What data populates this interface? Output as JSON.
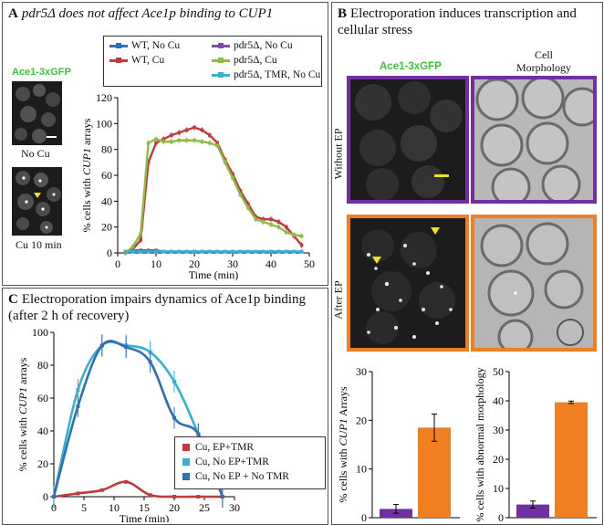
{
  "panelA": {
    "letter": "A",
    "title": "pdr5Δ does not affect Ace1p binding to CUP1",
    "micro_label": "Ace1-3xGFP",
    "caption_top": "No Cu",
    "caption_bottom": "Cu 10 min"
  },
  "panelB": {
    "letter": "B",
    "title": "Electroporation induces transcription and cellular stress",
    "col1": "Ace1-3xGFP",
    "col2": "Cell Morphology",
    "row1": "Without EP",
    "row2": "After EP"
  },
  "panelC": {
    "letter": "C",
    "title": "Electroporation impairs dynamics of Ace1p binding (after 2 h  of recovery)"
  },
  "colors": {
    "wt_no_cu": "#2f6fb5",
    "wt_cu": "#c0393d",
    "pdr5_no_cu": "#7d4fa3",
    "pdr5_cu": "#8fbc45",
    "pdr5_tmr": "#35b2d1",
    "purple": "#7030a0",
    "orange": "#f07f22"
  },
  "chart_data": [
    {
      "type": "line",
      "id": "A",
      "xlabel": "Time (min)",
      "ylabel": "% cells with CUP1 arrays",
      "xlim": [
        0,
        50
      ],
      "ylim": [
        0,
        120
      ],
      "xticks": [
        0,
        10,
        20,
        30,
        40,
        50
      ],
      "yticks": [
        0,
        20,
        40,
        60,
        80,
        100,
        120
      ],
      "series": [
        {
          "name": "WT, No Cu",
          "x": [
            2,
            4,
            6,
            8,
            10,
            12,
            14,
            16,
            18,
            20,
            22,
            24,
            26,
            28,
            30,
            32,
            34,
            36,
            38,
            40,
            42,
            44,
            46,
            48
          ],
          "values": [
            1,
            1,
            1,
            1,
            1,
            1,
            1,
            1,
            1,
            1,
            1,
            1,
            1,
            1,
            1,
            1,
            1,
            1,
            1,
            1,
            1,
            1,
            1,
            1
          ]
        },
        {
          "name": "WT, Cu",
          "x": [
            2,
            4,
            6,
            8,
            10,
            12,
            14,
            16,
            18,
            20,
            22,
            24,
            26,
            28,
            30,
            32,
            34,
            36,
            38,
            40,
            42,
            44,
            46,
            48
          ],
          "values": [
            0,
            3,
            10,
            70,
            85,
            88,
            91,
            93,
            95,
            97,
            95,
            91,
            85,
            72,
            61,
            48,
            38,
            28,
            26,
            26,
            24,
            20,
            13,
            6
          ]
        },
        {
          "name": "pdr5Δ, No Cu",
          "x": [
            2,
            4,
            6,
            8,
            10,
            12,
            14,
            16,
            18,
            20,
            22,
            24,
            26,
            28,
            30,
            32,
            34,
            36,
            38,
            40,
            42,
            44,
            46,
            48
          ],
          "values": [
            1,
            2,
            2,
            2,
            2,
            1,
            1,
            1,
            1,
            1,
            1,
            1,
            1,
            1,
            1,
            1,
            1,
            1,
            1,
            1,
            1,
            1,
            1,
            1
          ]
        },
        {
          "name": "pdr5Δ, Cu",
          "x": [
            2,
            4,
            6,
            8,
            10,
            12,
            14,
            16,
            18,
            20,
            22,
            24,
            26,
            28,
            30,
            32,
            34,
            36,
            38,
            40,
            42,
            44,
            46,
            48
          ],
          "values": [
            0,
            5,
            15,
            85,
            88,
            86,
            86,
            87,
            87,
            87,
            86,
            85,
            83,
            70,
            58,
            45,
            35,
            26,
            24,
            22,
            20,
            16,
            14,
            13
          ]
        },
        {
          "name": "pdr5Δ, TMR, No Cu",
          "x": [
            2,
            4,
            6,
            8,
            10,
            12,
            14,
            16,
            18,
            20,
            22,
            24,
            26,
            28,
            30,
            32,
            34,
            36,
            38,
            40,
            42,
            44,
            46,
            48
          ],
          "values": [
            1,
            1,
            1,
            1,
            1,
            1,
            1,
            1,
            1,
            1,
            1,
            1,
            1,
            1,
            1,
            1,
            1,
            1,
            1,
            1,
            1,
            1,
            1,
            1
          ]
        }
      ]
    },
    {
      "type": "line",
      "id": "C",
      "xlabel": "Time (min)",
      "ylabel": "% cells with CUP1 arrays",
      "xlim": [
        0,
        30
      ],
      "ylim": [
        0,
        100
      ],
      "xticks": [
        0,
        5,
        10,
        15,
        20,
        25,
        30
      ],
      "yticks": [
        0,
        20,
        40,
        60,
        80,
        100
      ],
      "series": [
        {
          "name": "Cu, EP+TMR",
          "x": [
            0,
            4,
            8,
            12,
            16,
            20,
            24,
            28
          ],
          "values": [
            0,
            2,
            4,
            9,
            1,
            0,
            0,
            0
          ]
        },
        {
          "name": "Cu, No EP+TMR",
          "x": [
            0,
            4,
            8,
            12,
            16,
            20,
            24,
            28
          ],
          "values": [
            0,
            65,
            92,
            92,
            88,
            70,
            38,
            0
          ]
        },
        {
          "name": "Cu, No EP + No TMR",
          "x": [
            0,
            4,
            8,
            12,
            16,
            20,
            24,
            28
          ],
          "values": [
            0,
            55,
            92,
            91,
            82,
            48,
            38,
            0
          ]
        }
      ]
    },
    {
      "type": "bar",
      "id": "B1",
      "ylabel": "% cells with CUP1 Arrays",
      "ylim": [
        0,
        30
      ],
      "yticks": [
        0,
        10,
        20,
        30
      ],
      "categories": [
        "Without EP",
        "After EP"
      ],
      "values": [
        1.8,
        18.5
      ],
      "errors": [
        0.9,
        2.8
      ]
    },
    {
      "type": "bar",
      "id": "B2",
      "ylabel": "% cells with abnormal morphology",
      "ylim": [
        0,
        50
      ],
      "yticks": [
        0,
        10,
        20,
        30,
        40,
        50
      ],
      "categories": [
        "Without EP",
        "After EP"
      ],
      "values": [
        4.5,
        39.5
      ],
      "errors": [
        1.2,
        0.4
      ]
    }
  ]
}
